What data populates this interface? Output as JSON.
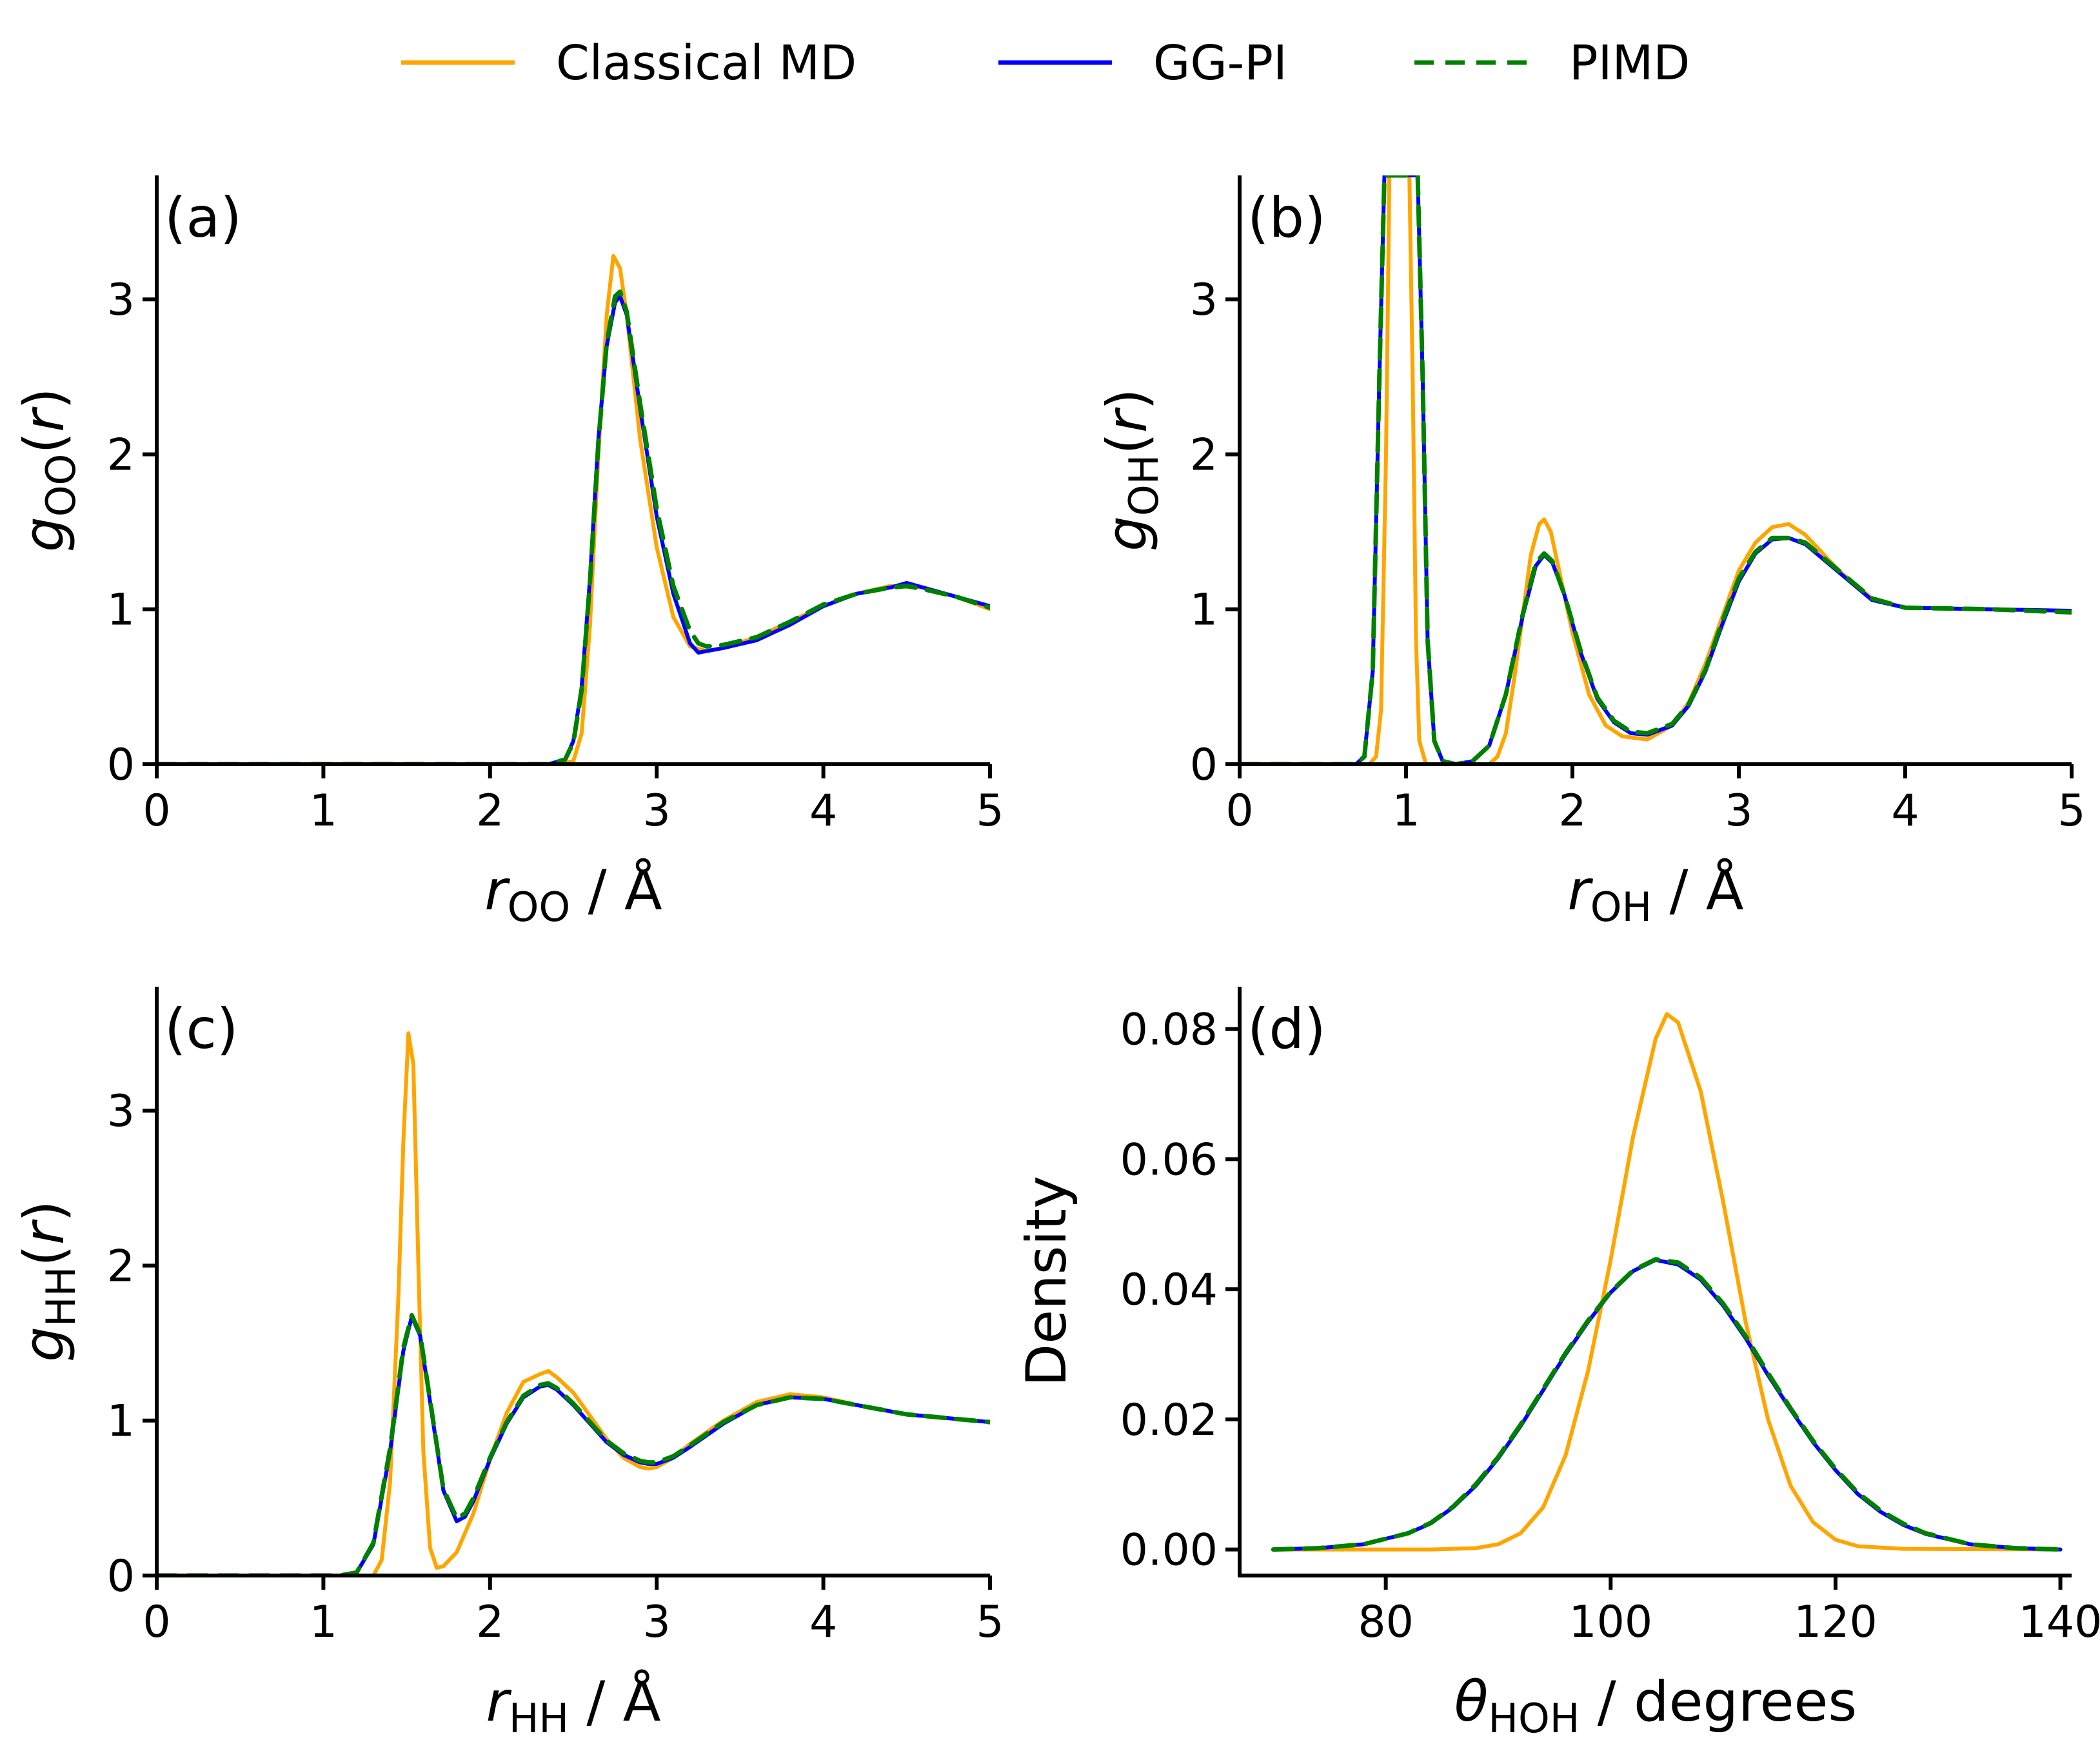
{
  "legend": {
    "items": [
      {
        "label": "Classical MD",
        "color": "#FFA500",
        "dash": "solid"
      },
      {
        "label": "GG-PI",
        "color": "#0000FF",
        "dash": "solid"
      },
      {
        "label": "PIMD",
        "color": "#008000",
        "dash": "dashed"
      }
    ]
  },
  "chart_data": [
    {
      "id": "a",
      "type": "line",
      "panel_label": "(a)",
      "ylabel": {
        "main": "g",
        "sub": "OO",
        "tail": "(r)"
      },
      "xlabel": {
        "main": "r",
        "sub": "OO",
        "tail": " / Å"
      },
      "xlim": [
        0,
        5
      ],
      "ylim": [
        0,
        3.8
      ],
      "xticks": [
        0,
        1,
        2,
        3,
        4,
        5
      ],
      "xtick_labels": [
        "0",
        "1",
        "2",
        "3",
        "4",
        "5"
      ],
      "yticks": [
        0,
        1,
        2,
        3
      ],
      "ytick_labels": [
        "0",
        "1",
        "2",
        "3"
      ],
      "series": [
        {
          "name": "Classical MD",
          "color": "#FFA500",
          "x": [
            0,
            2.4,
            2.5,
            2.55,
            2.6,
            2.65,
            2.7,
            2.74,
            2.78,
            2.82,
            2.9,
            3.0,
            3.1,
            3.2,
            3.3,
            3.4,
            3.6,
            3.8,
            4.0,
            4.2,
            4.4,
            4.6,
            4.8,
            5.0
          ],
          "y": [
            0,
            0,
            0.02,
            0.2,
            0.9,
            2.0,
            2.9,
            3.28,
            3.2,
            2.9,
            2.1,
            1.4,
            0.95,
            0.76,
            0.73,
            0.75,
            0.82,
            0.92,
            1.02,
            1.1,
            1.15,
            1.14,
            1.08,
            1.0
          ]
        },
        {
          "name": "GG-PI",
          "color": "#0000FF",
          "x": [
            0,
            2.35,
            2.45,
            2.5,
            2.55,
            2.6,
            2.65,
            2.7,
            2.75,
            2.78,
            2.82,
            2.9,
            3.0,
            3.1,
            3.2,
            3.25,
            3.3,
            3.4,
            3.6,
            3.8,
            4.0,
            4.2,
            4.4,
            4.5,
            4.6,
            4.8,
            5.0
          ],
          "y": [
            0,
            0,
            0.03,
            0.15,
            0.5,
            1.2,
            2.1,
            2.7,
            2.98,
            3.02,
            2.9,
            2.3,
            1.6,
            1.1,
            0.78,
            0.72,
            0.73,
            0.75,
            0.8,
            0.9,
            1.02,
            1.1,
            1.14,
            1.17,
            1.14,
            1.08,
            1.02
          ]
        },
        {
          "name": "PIMD",
          "color": "#008000",
          "dashed": true,
          "x": [
            0,
            2.35,
            2.45,
            2.5,
            2.55,
            2.6,
            2.65,
            2.7,
            2.75,
            2.78,
            2.82,
            2.9,
            3.0,
            3.1,
            3.2,
            3.25,
            3.3,
            3.4,
            3.6,
            3.8,
            4.0,
            4.2,
            4.4,
            4.5,
            4.6,
            4.8,
            5.0
          ],
          "y": [
            0,
            0,
            0.03,
            0.14,
            0.48,
            1.18,
            2.08,
            2.72,
            3.02,
            3.05,
            2.92,
            2.33,
            1.65,
            1.15,
            0.86,
            0.78,
            0.76,
            0.77,
            0.82,
            0.92,
            1.03,
            1.1,
            1.14,
            1.15,
            1.13,
            1.08,
            1.01
          ]
        }
      ]
    },
    {
      "id": "b",
      "type": "line",
      "panel_label": "(b)",
      "ylabel": {
        "main": "g",
        "sub": "OH",
        "tail": "(r)"
      },
      "xlabel": {
        "main": "r",
        "sub": "OH",
        "tail": " / Å"
      },
      "xlim": [
        0,
        5
      ],
      "ylim": [
        0,
        3.8
      ],
      "xticks": [
        0,
        1,
        2,
        3,
        4,
        5
      ],
      "xtick_labels": [
        "0",
        "1",
        "2",
        "3",
        "4",
        "5"
      ],
      "yticks": [
        0,
        1,
        2,
        3
      ],
      "ytick_labels": [
        "0",
        "1",
        "2",
        "3"
      ],
      "series": [
        {
          "name": "Classical MD",
          "color": "#FFA500",
          "x": [
            0,
            0.78,
            0.82,
            0.85,
            0.88,
            0.9,
            0.93,
            1.02,
            1.04,
            1.06,
            1.08,
            1.12,
            1.2,
            1.5,
            1.55,
            1.6,
            1.65,
            1.7,
            1.75,
            1.8,
            1.83,
            1.87,
            1.9,
            2.0,
            2.1,
            2.2,
            2.3,
            2.45,
            2.6,
            2.7,
            2.8,
            2.9,
            3.0,
            3.1,
            3.2,
            3.3,
            3.4,
            3.6,
            3.8,
            4.0,
            4.5,
            5.0
          ],
          "y": [
            0,
            0,
            0.05,
            0.35,
            2.0,
            3.8,
            3.8,
            3.8,
            2.5,
            0.8,
            0.15,
            0.0,
            0,
            0,
            0.05,
            0.2,
            0.55,
            0.95,
            1.35,
            1.55,
            1.58,
            1.5,
            1.35,
            0.85,
            0.45,
            0.25,
            0.18,
            0.16,
            0.25,
            0.4,
            0.65,
            0.95,
            1.25,
            1.43,
            1.53,
            1.55,
            1.48,
            1.25,
            1.07,
            1.01,
            1.0,
            0.99
          ]
        },
        {
          "name": "GG-PI",
          "color": "#0000FF",
          "x": [
            0,
            0.7,
            0.75,
            0.8,
            0.84,
            0.87,
            1.07,
            1.1,
            1.13,
            1.17,
            1.22,
            1.3,
            1.4,
            1.5,
            1.6,
            1.7,
            1.78,
            1.83,
            1.88,
            1.95,
            2.05,
            2.15,
            2.25,
            2.35,
            2.45,
            2.6,
            2.7,
            2.8,
            2.9,
            3.0,
            3.1,
            3.2,
            3.3,
            3.4,
            3.6,
            3.8,
            4.0,
            4.5,
            5.0
          ],
          "y": [
            0,
            0,
            0.05,
            0.6,
            2.5,
            3.8,
            3.8,
            2.5,
            0.8,
            0.15,
            0.02,
            0,
            0.02,
            0.12,
            0.45,
            0.95,
            1.28,
            1.35,
            1.3,
            1.1,
            0.72,
            0.42,
            0.27,
            0.2,
            0.19,
            0.25,
            0.38,
            0.6,
            0.9,
            1.18,
            1.36,
            1.45,
            1.46,
            1.42,
            1.24,
            1.06,
            1.01,
            1.0,
            0.99
          ]
        },
        {
          "name": "PIMD",
          "color": "#008000",
          "dashed": true,
          "x": [
            0,
            0.7,
            0.75,
            0.8,
            0.84,
            0.87,
            1.07,
            1.1,
            1.13,
            1.17,
            1.22,
            1.3,
            1.4,
            1.5,
            1.6,
            1.7,
            1.78,
            1.83,
            1.88,
            1.95,
            2.05,
            2.15,
            2.25,
            2.35,
            2.45,
            2.6,
            2.7,
            2.8,
            2.9,
            3.0,
            3.1,
            3.2,
            3.3,
            3.4,
            3.6,
            3.8,
            4.0,
            4.5,
            5.0
          ],
          "y": [
            0,
            0,
            0.05,
            0.6,
            2.5,
            3.8,
            3.8,
            2.5,
            0.8,
            0.15,
            0.02,
            0,
            0.02,
            0.12,
            0.45,
            0.96,
            1.3,
            1.36,
            1.31,
            1.1,
            0.73,
            0.43,
            0.28,
            0.21,
            0.2,
            0.26,
            0.39,
            0.61,
            0.92,
            1.2,
            1.37,
            1.46,
            1.46,
            1.43,
            1.25,
            1.07,
            1.01,
            1.0,
            0.98
          ]
        }
      ]
    },
    {
      "id": "c",
      "type": "line",
      "panel_label": "(c)",
      "ylabel": {
        "main": "g",
        "sub": "HH",
        "tail": "(r)"
      },
      "xlabel": {
        "main": "r",
        "sub": "HH",
        "tail": " / Å"
      },
      "xlim": [
        0,
        5
      ],
      "ylim": [
        0,
        3.8
      ],
      "xticks": [
        0,
        1,
        2,
        3,
        4,
        5
      ],
      "xtick_labels": [
        "0",
        "1",
        "2",
        "3",
        "4",
        "5"
      ],
      "yticks": [
        0,
        1,
        2,
        3
      ],
      "ytick_labels": [
        "0",
        "1",
        "2",
        "3"
      ],
      "series": [
        {
          "name": "Classical MD",
          "color": "#FFA500",
          "x": [
            0,
            1.3,
            1.35,
            1.4,
            1.45,
            1.48,
            1.51,
            1.54,
            1.57,
            1.6,
            1.64,
            1.68,
            1.72,
            1.8,
            1.9,
            2.0,
            2.1,
            2.2,
            2.3,
            2.35,
            2.4,
            2.5,
            2.6,
            2.7,
            2.8,
            2.9,
            2.95,
            3.0,
            3.1,
            3.2,
            3.4,
            3.6,
            3.8,
            4.0,
            4.2,
            4.5,
            5.0
          ],
          "y": [
            0,
            0,
            0.1,
            0.6,
            1.8,
            2.8,
            3.5,
            3.3,
            2.0,
            0.8,
            0.18,
            0.05,
            0.06,
            0.15,
            0.4,
            0.75,
            1.05,
            1.25,
            1.3,
            1.32,
            1.28,
            1.18,
            1.03,
            0.88,
            0.76,
            0.7,
            0.69,
            0.7,
            0.76,
            0.85,
            1.0,
            1.12,
            1.17,
            1.15,
            1.1,
            1.04,
            0.99
          ]
        },
        {
          "name": "GG-PI",
          "color": "#0000FF",
          "x": [
            0,
            1.1,
            1.2,
            1.3,
            1.4,
            1.48,
            1.53,
            1.58,
            1.65,
            1.72,
            1.8,
            1.85,
            1.9,
            2.0,
            2.1,
            2.2,
            2.3,
            2.35,
            2.4,
            2.5,
            2.6,
            2.7,
            2.8,
            2.9,
            2.95,
            3.0,
            3.1,
            3.2,
            3.4,
            3.6,
            3.8,
            4.0,
            4.2,
            4.5,
            5.0
          ],
          "y": [
            0,
            0,
            0.02,
            0.2,
            0.8,
            1.45,
            1.67,
            1.55,
            1.05,
            0.55,
            0.35,
            0.38,
            0.48,
            0.75,
            0.98,
            1.15,
            1.22,
            1.23,
            1.2,
            1.1,
            0.98,
            0.86,
            0.78,
            0.73,
            0.72,
            0.72,
            0.76,
            0.83,
            0.98,
            1.1,
            1.15,
            1.14,
            1.1,
            1.04,
            0.99
          ]
        },
        {
          "name": "PIMD",
          "color": "#008000",
          "dashed": true,
          "x": [
            0,
            1.1,
            1.2,
            1.3,
            1.4,
            1.48,
            1.53,
            1.58,
            1.65,
            1.72,
            1.8,
            1.85,
            1.9,
            2.0,
            2.1,
            2.2,
            2.3,
            2.35,
            2.4,
            2.5,
            2.6,
            2.7,
            2.8,
            2.9,
            2.95,
            3.0,
            3.1,
            3.2,
            3.4,
            3.6,
            3.8,
            4.0,
            4.2,
            4.5,
            5.0
          ],
          "y": [
            0,
            0,
            0.02,
            0.21,
            0.82,
            1.47,
            1.68,
            1.56,
            1.06,
            0.56,
            0.37,
            0.4,
            0.5,
            0.76,
            0.99,
            1.16,
            1.23,
            1.24,
            1.21,
            1.11,
            0.99,
            0.87,
            0.79,
            0.74,
            0.73,
            0.73,
            0.77,
            0.84,
            0.99,
            1.1,
            1.15,
            1.14,
            1.1,
            1.04,
            0.99
          ]
        }
      ]
    },
    {
      "id": "d",
      "type": "line",
      "panel_label": "(d)",
      "ylabel": {
        "main": "Density",
        "sub": "",
        "tail": ""
      },
      "xlabel": {
        "main": "θ",
        "sub": "HOH",
        "tail": " / degrees"
      },
      "xlim": [
        67,
        141
      ],
      "ylim": [
        -0.004,
        0.0865
      ],
      "xticks": [
        80,
        100,
        120,
        140
      ],
      "xtick_labels": [
        "80",
        "100",
        "120",
        "140"
      ],
      "yticks": [
        0.0,
        0.02,
        0.04,
        0.06,
        0.08
      ],
      "ytick_labels": [
        "0.00",
        "0.02",
        "0.04",
        "0.06",
        "0.08"
      ],
      "series": [
        {
          "name": "Classical MD",
          "color": "#FFA500",
          "x": [
            70,
            84,
            88,
            90,
            92,
            94,
            96,
            98,
            100,
            102,
            104,
            105,
            106,
            108,
            110,
            112,
            114,
            116,
            118,
            120,
            122,
            126,
            140
          ],
          "y": [
            0,
            0,
            0.0002,
            0.0008,
            0.0025,
            0.0065,
            0.0145,
            0.0275,
            0.0445,
            0.0635,
            0.0785,
            0.0823,
            0.081,
            0.0705,
            0.0535,
            0.035,
            0.02,
            0.0098,
            0.0042,
            0.0015,
            0.0005,
            0.0001,
            0
          ]
        },
        {
          "name": "GG-PI",
          "color": "#0000FF",
          "x": [
            70,
            74,
            78,
            82,
            84,
            86,
            88,
            90,
            92,
            94,
            96,
            98,
            100,
            102,
            104,
            106,
            108,
            110,
            112,
            114,
            116,
            118,
            120,
            122,
            124,
            126,
            128,
            132,
            136,
            140
          ],
          "y": [
            0,
            0.0002,
            0.0008,
            0.0025,
            0.004,
            0.0065,
            0.0098,
            0.014,
            0.019,
            0.0245,
            0.03,
            0.035,
            0.0395,
            0.0428,
            0.0445,
            0.0438,
            0.0415,
            0.0375,
            0.0325,
            0.0268,
            0.0215,
            0.0165,
            0.0122,
            0.0085,
            0.0058,
            0.0038,
            0.0024,
            0.0008,
            0.0002,
            0
          ]
        },
        {
          "name": "PIMD",
          "color": "#008000",
          "dashed": true,
          "x": [
            70,
            74,
            78,
            82,
            84,
            86,
            88,
            90,
            92,
            94,
            96,
            98,
            100,
            102,
            104,
            106,
            108,
            110,
            112,
            114,
            116,
            118,
            120,
            122,
            124,
            126,
            128,
            132,
            136,
            140
          ],
          "y": [
            0,
            0.0002,
            0.0008,
            0.0025,
            0.0041,
            0.0066,
            0.01,
            0.0142,
            0.0192,
            0.0247,
            0.0302,
            0.0352,
            0.0396,
            0.0429,
            0.0446,
            0.0441,
            0.0418,
            0.0378,
            0.0328,
            0.0271,
            0.0217,
            0.0167,
            0.0124,
            0.0087,
            0.006,
            0.004,
            0.0025,
            0.0008,
            0.0002,
            0
          ]
        }
      ]
    }
  ]
}
